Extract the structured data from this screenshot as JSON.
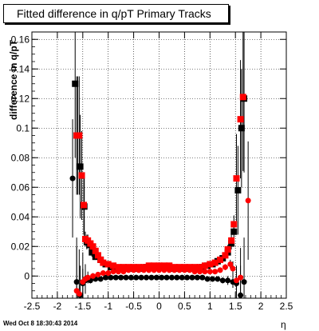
{
  "title": "Fitted difference in q/pT  Primary Tracks",
  "footer": "Wed Oct  8 18:30:43 2014",
  "chart_data": {
    "type": "scatter",
    "title": "Fitted difference in q/pT  Primary Tracks",
    "xlabel": "η",
    "ylabel": "difference in q/pT",
    "xlim": [
      -2.5,
      2.5
    ],
    "ylim": [
      -0.015,
      0.165
    ],
    "grid": true,
    "legend": "none",
    "x_ticks": [
      "-2.5",
      "-2",
      "-1.5",
      "-1",
      "-0.5",
      "0",
      "0.5",
      "1",
      "1.5",
      "2",
      "2.5"
    ],
    "y_ticks": [
      "0",
      "0.02",
      "0.04",
      "0.06",
      "0.08",
      "0.1",
      "0.12",
      "0.14",
      "0.16"
    ],
    "series": [
      {
        "marker": "square",
        "color": "#000000",
        "points": [
          [
            -1.65,
            0.13
          ],
          [
            -1.6,
            0.095
          ],
          [
            -1.55,
            0.074
          ],
          [
            -1.52,
            0.068
          ],
          [
            -1.47,
            0.047
          ],
          [
            -1.42,
            0.023
          ],
          [
            -1.37,
            0.021
          ],
          [
            -1.32,
            0.016
          ],
          [
            -1.25,
            0.013
          ],
          [
            -1.15,
            0.011
          ],
          [
            -1.05,
            0.008
          ],
          [
            -0.95,
            0.006
          ],
          [
            -0.85,
            0.005
          ],
          [
            -0.75,
            0.005
          ],
          [
            -0.65,
            0.005
          ],
          [
            -0.55,
            0.005
          ],
          [
            -0.45,
            0.005
          ],
          [
            -0.35,
            0.005
          ],
          [
            -0.25,
            0.006
          ],
          [
            -0.15,
            0.006
          ],
          [
            -0.05,
            0.006
          ],
          [
            0.05,
            0.006
          ],
          [
            0.15,
            0.006
          ],
          [
            0.25,
            0.005
          ],
          [
            0.35,
            0.005
          ],
          [
            0.45,
            0.005
          ],
          [
            0.55,
            0.005
          ],
          [
            0.65,
            0.005
          ],
          [
            0.75,
            0.005
          ],
          [
            0.85,
            0.006
          ],
          [
            0.95,
            0.007
          ],
          [
            1.05,
            0.008
          ],
          [
            1.15,
            0.01
          ],
          [
            1.25,
            0.012
          ],
          [
            1.35,
            0.016
          ],
          [
            1.42,
            0.022
          ],
          [
            1.47,
            0.03
          ],
          [
            1.55,
            0.058
          ],
          [
            1.62,
            0.1
          ],
          [
            1.67,
            0.12
          ]
        ],
        "errors": [
          0.05,
          0.04,
          0.035,
          0.03,
          0.02,
          0.005,
          0.004,
          0.003,
          0.002,
          0.002,
          0.001,
          0.001,
          0.001,
          0.001,
          0.001,
          0.001,
          0.001,
          0.001,
          0.001,
          0.001,
          0.001,
          0.001,
          0.001,
          0.001,
          0.001,
          0.001,
          0.001,
          0.001,
          0.001,
          0.001,
          0.001,
          0.001,
          0.002,
          0.002,
          0.003,
          0.004,
          0.006,
          0.03,
          0.04,
          0.05
        ]
      },
      {
        "marker": "circle",
        "color": "#000000",
        "points": [
          [
            -1.7,
            0.066
          ],
          [
            -1.62,
            -0.004
          ],
          [
            -1.55,
            -0.013
          ],
          [
            -1.5,
            -0.005
          ],
          [
            -1.45,
            -0.003
          ],
          [
            -1.35,
            -0.003
          ],
          [
            -1.25,
            -0.002
          ],
          [
            -1.15,
            -0.002
          ],
          [
            -1.05,
            -0.001
          ],
          [
            -0.95,
            -0.001
          ],
          [
            -0.85,
            -0.001
          ],
          [
            -0.75,
            -0.001
          ],
          [
            -0.65,
            -0.001
          ],
          [
            -0.55,
            -0.001
          ],
          [
            -0.45,
            -0.001
          ],
          [
            -0.35,
            -0.001
          ],
          [
            -0.25,
            -0.001
          ],
          [
            -0.15,
            -0.001
          ],
          [
            -0.05,
            -0.001
          ],
          [
            0.05,
            -0.001
          ],
          [
            0.15,
            -0.001
          ],
          [
            0.25,
            -0.001
          ],
          [
            0.35,
            -0.001
          ],
          [
            0.45,
            -0.001
          ],
          [
            0.55,
            -0.001
          ],
          [
            0.65,
            -0.001
          ],
          [
            0.75,
            -0.001
          ],
          [
            0.85,
            -0.001
          ],
          [
            0.95,
            -0.002
          ],
          [
            1.05,
            -0.002
          ],
          [
            1.15,
            -0.002
          ],
          [
            1.25,
            -0.003
          ],
          [
            1.35,
            -0.003
          ],
          [
            1.45,
            -0.004
          ],
          [
            1.52,
            -0.005
          ],
          [
            1.6,
            -0.013
          ],
          [
            1.67,
            -0.004
          ]
        ],
        "errors": [
          0.04,
          0.03,
          0.02,
          0.01,
          0.004,
          0.002,
          0.001,
          0.001,
          0.001,
          0.001,
          0.001,
          0.001,
          0.001,
          0.001,
          0.001,
          0.001,
          0.001,
          0.001,
          0.001,
          0.001,
          0.001,
          0.001,
          0.001,
          0.001,
          0.001,
          0.001,
          0.001,
          0.001,
          0.001,
          0.001,
          0.001,
          0.002,
          0.003,
          0.004,
          0.01,
          0.02,
          0.03
        ]
      },
      {
        "marker": "square",
        "color": "#ff0000",
        "points": [
          [
            -1.62,
            0.095
          ],
          [
            -1.57,
            0.095
          ],
          [
            -1.52,
            0.068
          ],
          [
            -1.48,
            0.048
          ],
          [
            -1.45,
            0.025
          ],
          [
            -1.4,
            0.024
          ],
          [
            -1.35,
            0.022
          ],
          [
            -1.3,
            0.02
          ],
          [
            -1.25,
            0.017
          ],
          [
            -1.2,
            0.014
          ],
          [
            -1.15,
            0.011
          ],
          [
            -1.1,
            0.009
          ],
          [
            -1.0,
            0.008
          ],
          [
            -0.9,
            0.007
          ],
          [
            -0.8,
            0.006
          ],
          [
            -0.7,
            0.006
          ],
          [
            -0.6,
            0.006
          ],
          [
            -0.5,
            0.006
          ],
          [
            -0.4,
            0.006
          ],
          [
            -0.3,
            0.006
          ],
          [
            -0.2,
            0.007
          ],
          [
            -0.1,
            0.007
          ],
          [
            0.0,
            0.007
          ],
          [
            0.1,
            0.007
          ],
          [
            0.2,
            0.007
          ],
          [
            0.3,
            0.006
          ],
          [
            0.4,
            0.006
          ],
          [
            0.5,
            0.006
          ],
          [
            0.6,
            0.006
          ],
          [
            0.7,
            0.006
          ],
          [
            0.8,
            0.006
          ],
          [
            0.9,
            0.007
          ],
          [
            1.0,
            0.008
          ],
          [
            1.1,
            0.009
          ],
          [
            1.2,
            0.011
          ],
          [
            1.3,
            0.014
          ],
          [
            1.35,
            0.018
          ],
          [
            1.42,
            0.024
          ],
          [
            1.47,
            0.035
          ],
          [
            1.52,
            0.066
          ],
          [
            1.6,
            0.106
          ],
          [
            1.65,
            0.121
          ]
        ],
        "errors": [
          0.04,
          0.04,
          0.03,
          0.02,
          0.005,
          0.004,
          0.004,
          0.003,
          0.003,
          0.002,
          0.002,
          0.001,
          0.001,
          0.001,
          0.001,
          0.001,
          0.001,
          0.001,
          0.001,
          0.001,
          0.001,
          0.001,
          0.001,
          0.001,
          0.001,
          0.001,
          0.001,
          0.001,
          0.001,
          0.001,
          0.001,
          0.001,
          0.001,
          0.001,
          0.002,
          0.002,
          0.003,
          0.004,
          0.006,
          0.03,
          0.04,
          0.05
        ]
      },
      {
        "marker": "circle",
        "color": "#ff0000",
        "points": [
          [
            -1.62,
            -0.01
          ],
          [
            -1.57,
            -0.012
          ],
          [
            -1.5,
            -0.004
          ],
          [
            -1.45,
            -0.002
          ],
          [
            -1.4,
            -0.001
          ],
          [
            -1.3,
            0.0
          ],
          [
            -1.2,
            0.001
          ],
          [
            -1.1,
            0.002
          ],
          [
            -1.0,
            0.002
          ],
          [
            -0.9,
            0.003
          ],
          [
            -0.8,
            0.003
          ],
          [
            -0.7,
            0.003
          ],
          [
            -0.6,
            0.004
          ],
          [
            -0.5,
            0.004
          ],
          [
            -0.4,
            0.004
          ],
          [
            -0.3,
            0.004
          ],
          [
            -0.2,
            0.004
          ],
          [
            -0.1,
            0.004
          ],
          [
            0.0,
            0.004
          ],
          [
            0.1,
            0.004
          ],
          [
            0.2,
            0.004
          ],
          [
            0.3,
            0.004
          ],
          [
            0.4,
            0.004
          ],
          [
            0.5,
            0.004
          ],
          [
            0.6,
            0.004
          ],
          [
            0.7,
            0.003
          ],
          [
            0.8,
            0.003
          ],
          [
            0.9,
            0.003
          ],
          [
            1.0,
            0.003
          ],
          [
            1.1,
            0.003
          ],
          [
            1.2,
            0.004
          ],
          [
            1.3,
            0.006
          ],
          [
            1.4,
            0.008
          ],
          [
            1.45,
            0.005
          ],
          [
            1.52,
            -0.003
          ],
          [
            1.6,
            -0.001
          ],
          [
            1.75,
            0.051
          ]
        ],
        "errors": [
          0.03,
          0.03,
          0.02,
          0.01,
          0.004,
          0.002,
          0.001,
          0.001,
          0.001,
          0.001,
          0.001,
          0.001,
          0.001,
          0.001,
          0.001,
          0.001,
          0.001,
          0.001,
          0.001,
          0.001,
          0.001,
          0.001,
          0.001,
          0.001,
          0.001,
          0.001,
          0.001,
          0.001,
          0.001,
          0.001,
          0.001,
          0.002,
          0.003,
          0.005,
          0.01,
          0.02,
          0.04
        ]
      }
    ]
  }
}
